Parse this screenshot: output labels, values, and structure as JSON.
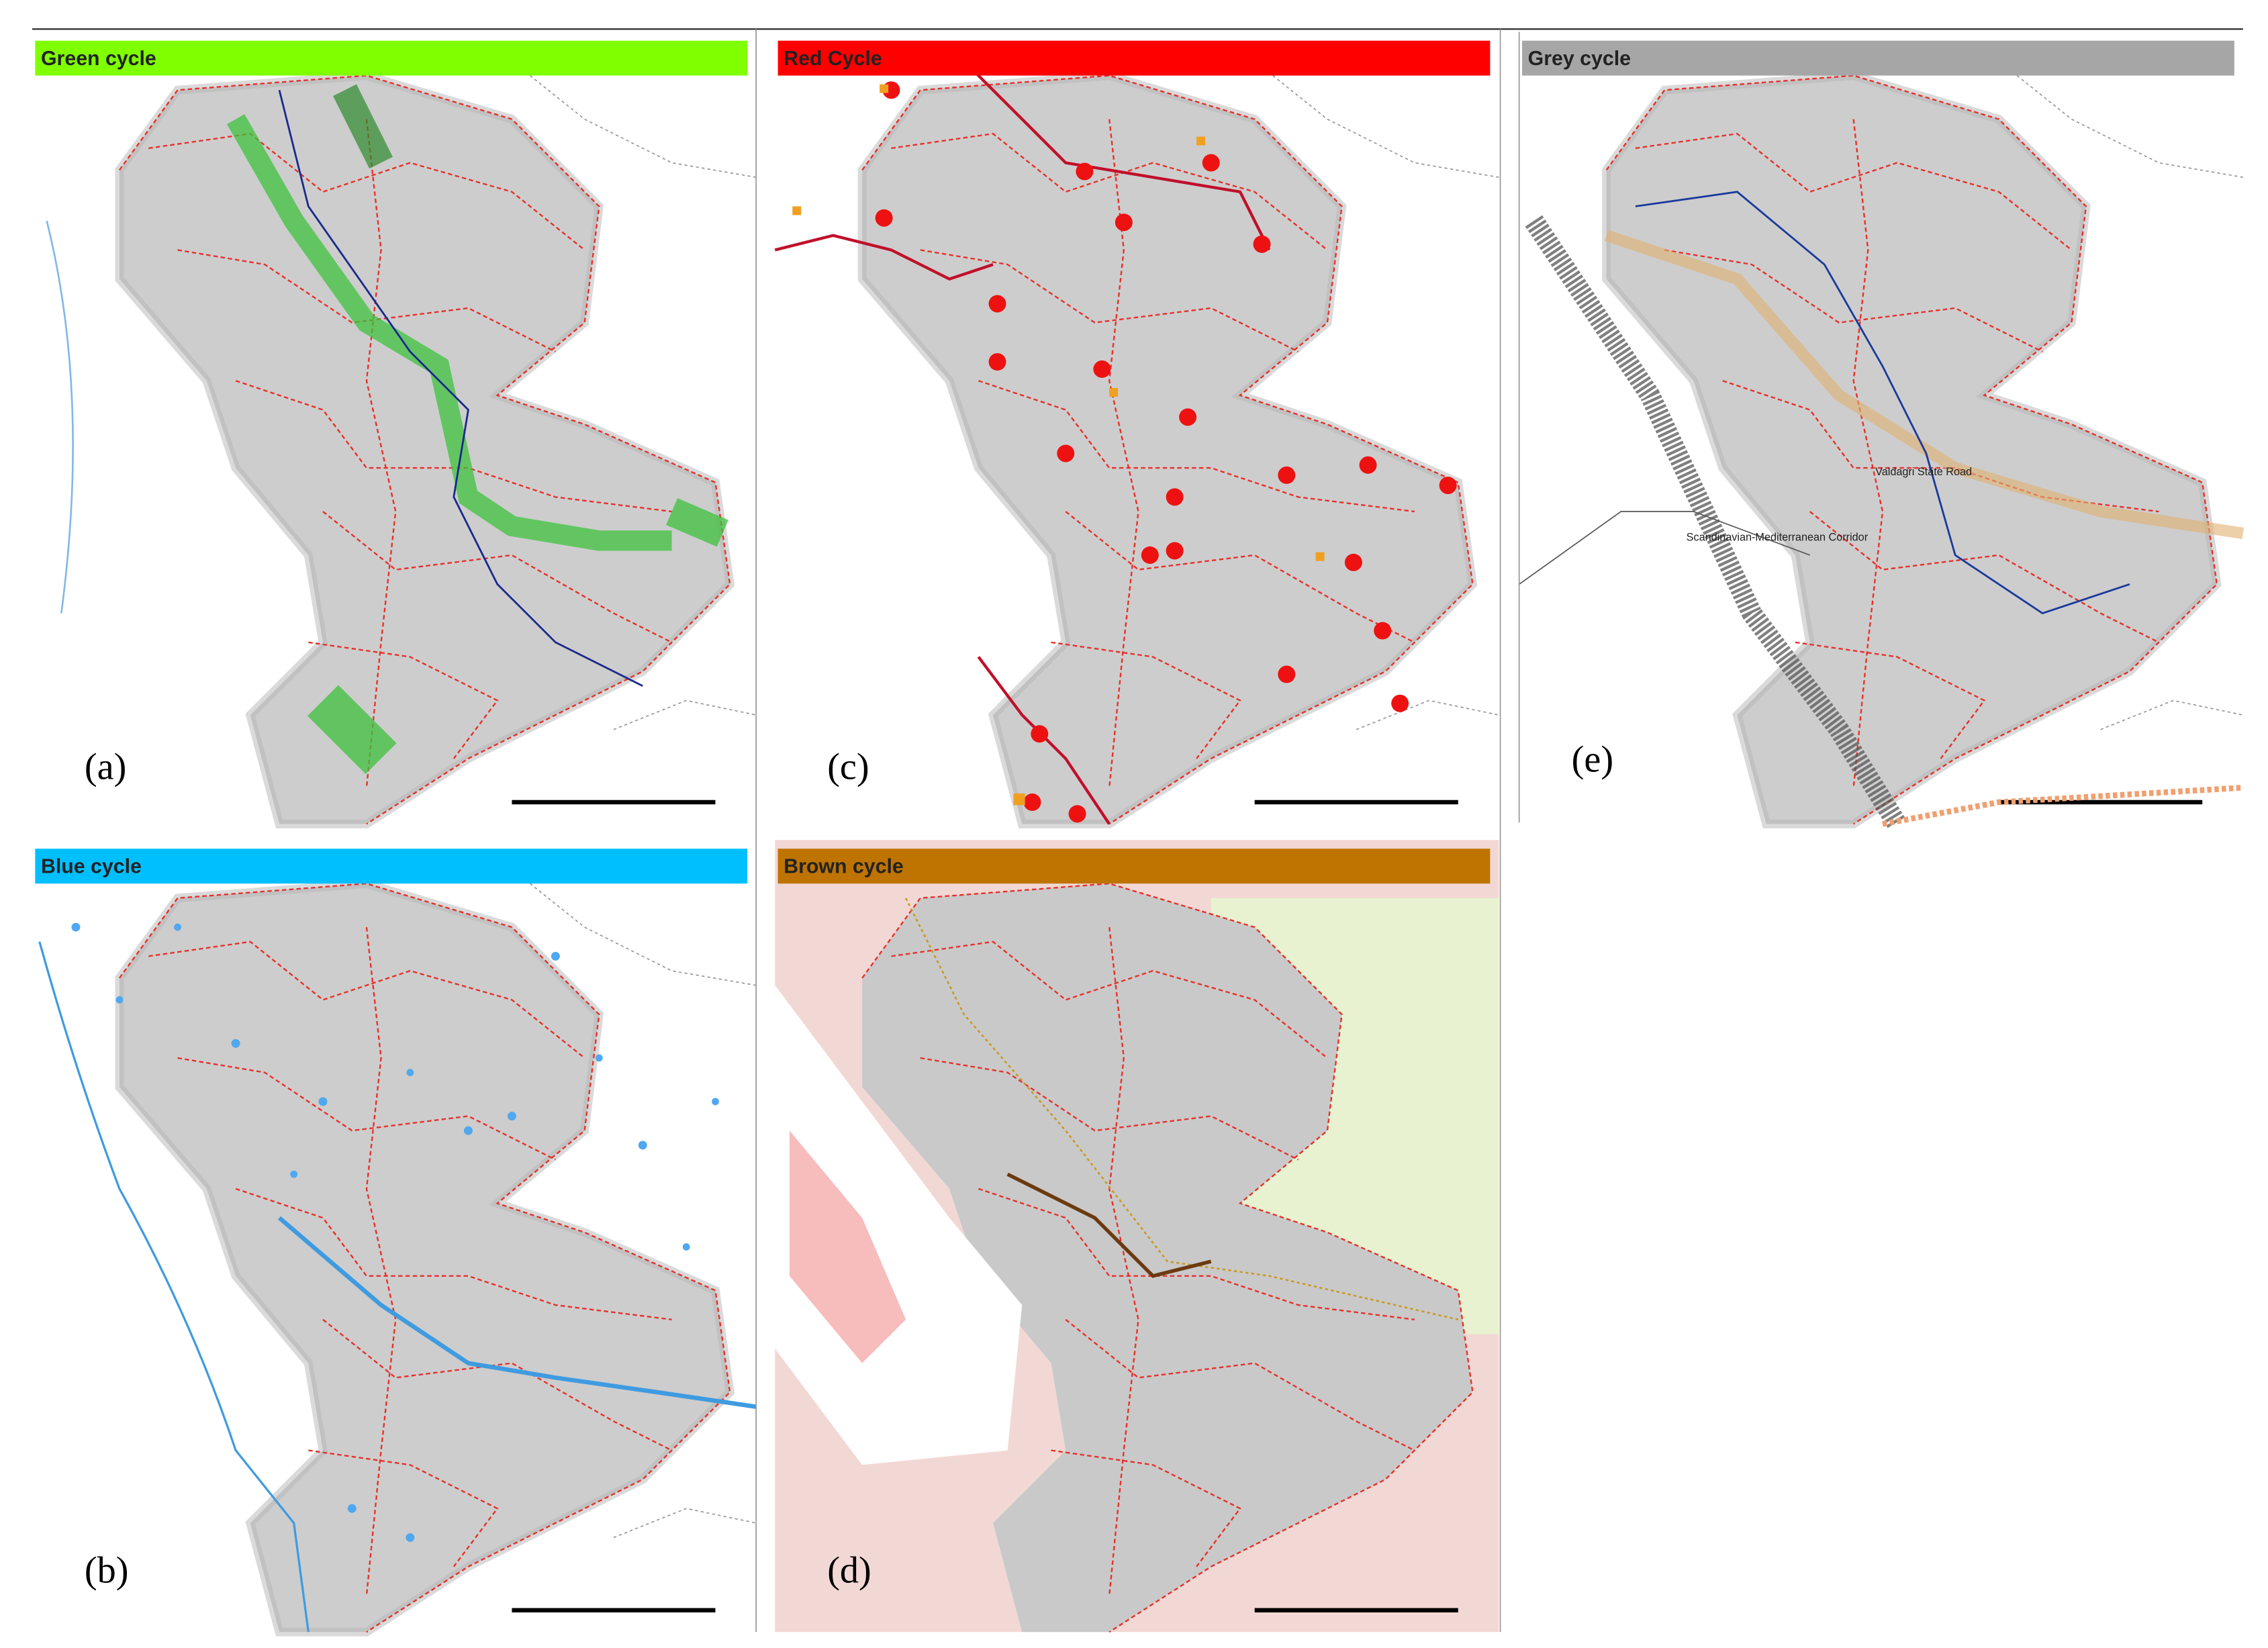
{
  "panels": [
    {
      "title": "Green cycle",
      "label": "(a)"
    },
    {
      "title": "Red Cycle",
      "label": "(c)"
    },
    {
      "title": "Grey cycle",
      "label": "(e)",
      "annotations": [
        "Valdagri State Road",
        "Scandinavian-Mediterranean Corridor"
      ]
    },
    {
      "title": "Blue cycle",
      "label": "(b)"
    },
    {
      "title": "Brown cycle",
      "label": "(d)"
    }
  ]
}
